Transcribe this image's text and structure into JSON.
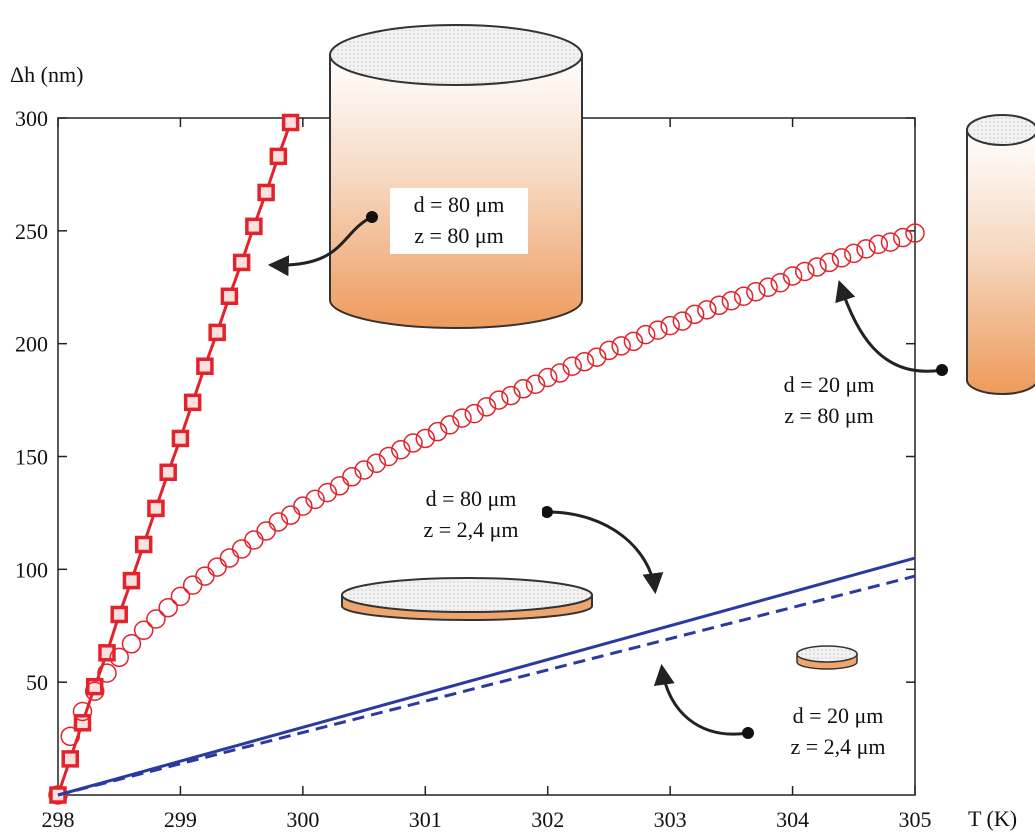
{
  "chart_data": {
    "type": "line",
    "xlabel": "T (K)",
    "ylabel": "Δh (nm)",
    "xlim": [
      298,
      305
    ],
    "ylim": [
      0,
      300
    ],
    "xticks": [
      298,
      299,
      300,
      301,
      302,
      303,
      304,
      305
    ],
    "yticks": [
      50,
      100,
      150,
      200,
      250,
      300
    ],
    "series": [
      {
        "color": "#e3232b",
        "marker": "square",
        "linestyle": "solid",
        "x": [
          298,
          298.1,
          298.2,
          298.3,
          298.4,
          298.5,
          298.6,
          298.7,
          298.8,
          298.9,
          299,
          299.1,
          299.2,
          299.3,
          299.4,
          299.5,
          299.6,
          299.7,
          299.8,
          299.9
        ],
        "values": [
          0,
          16,
          32,
          48,
          63,
          80,
          95,
          111,
          127,
          143,
          158,
          174,
          190,
          205,
          221,
          236,
          252,
          267,
          283,
          298
        ]
      },
      {
        "color": "#e3232b",
        "marker": "circle",
        "linestyle": "none",
        "x": [
          298,
          298.1,
          298.2,
          298.3,
          298.4,
          298.5,
          298.6,
          298.7,
          298.8,
          298.9,
          299,
          299.1,
          299.2,
          299.3,
          299.4,
          299.5,
          299.6,
          299.7,
          299.8,
          299.9,
          300,
          300.1,
          300.2,
          300.3,
          300.4,
          300.5,
          300.6,
          300.7,
          300.8,
          300.9,
          301,
          301.1,
          301.2,
          301.3,
          301.4,
          301.5,
          301.6,
          301.7,
          301.8,
          301.9,
          302,
          302.1,
          302.2,
          302.3,
          302.4,
          302.5,
          302.6,
          302.7,
          302.8,
          302.9,
          303,
          303.1,
          303.2,
          303.3,
          303.4,
          303.5,
          303.6,
          303.7,
          303.8,
          303.9,
          304,
          304.1,
          304.2,
          304.3,
          304.4,
          304.5,
          304.6,
          304.7,
          304.8,
          304.9,
          305
        ],
        "values": [
          0,
          26,
          37,
          46,
          54,
          61,
          67,
          73,
          78,
          83,
          88,
          93,
          97,
          101,
          105,
          109,
          113,
          117,
          121,
          124,
          128,
          131,
          134,
          137,
          141,
          144,
          147,
          150,
          153,
          156,
          158,
          161,
          164,
          167,
          169,
          172,
          175,
          177,
          180,
          182,
          185,
          187,
          190,
          192,
          194,
          197,
          199,
          201,
          204,
          206,
          208,
          210,
          213,
          215,
          217,
          219,
          221,
          223,
          225,
          227,
          230,
          232,
          234,
          236,
          238,
          240,
          242,
          244,
          245,
          247,
          249
        ]
      },
      {
        "color": "#2b3aa0",
        "marker": "none",
        "linestyle": "solid",
        "x": [
          298,
          305
        ],
        "values": [
          0,
          105
        ]
      },
      {
        "color": "#2b3aa0",
        "marker": "none",
        "linestyle": "dashed",
        "x": [
          298,
          305
        ],
        "values": [
          0,
          97
        ]
      }
    ],
    "annotations": [
      {
        "lines": [
          "d = 80 μm",
          "z = 80 μm"
        ]
      },
      {
        "lines": [
          "d = 20 μm",
          "z = 80 μm"
        ]
      },
      {
        "lines": [
          "d = 80 μm",
          "z = 2,4 μm"
        ]
      },
      {
        "lines": [
          "d = 20 μm",
          "z = 2,4 μm"
        ]
      }
    ]
  }
}
